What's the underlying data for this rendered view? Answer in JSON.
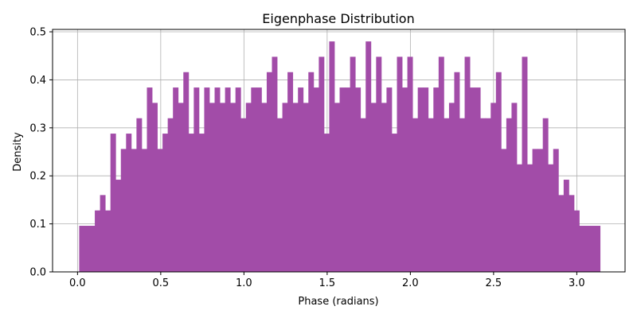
{
  "chart_data": {
    "type": "bar",
    "subtype": "histogram",
    "title": "Eigenphase Distribution",
    "xlabel": "Phase (radians)",
    "ylabel": "Density",
    "xlim": [
      -0.15,
      3.29
    ],
    "ylim": [
      0,
      0.505
    ],
    "xticks": [
      0.0,
      0.5,
      1.0,
      1.5,
      2.0,
      2.5,
      3.0
    ],
    "xtick_labels": [
      "0.0",
      "0.5",
      "1.0",
      "1.5",
      "2.0",
      "2.5",
      "3.0"
    ],
    "yticks": [
      0.0,
      0.1,
      0.2,
      0.3,
      0.4,
      0.5
    ],
    "ytick_labels": [
      "0.0",
      "0.1",
      "0.2",
      "0.3",
      "0.4",
      "0.5"
    ],
    "grid": true,
    "bar_color": "#a24ca8",
    "bin_range": [
      0.01,
      3.14
    ],
    "values": [
      0.096,
      0.096,
      0.096,
      0.128,
      0.16,
      0.128,
      0.288,
      0.192,
      0.256,
      0.288,
      0.256,
      0.32,
      0.256,
      0.384,
      0.352,
      0.256,
      0.288,
      0.32,
      0.384,
      0.352,
      0.416,
      0.288,
      0.384,
      0.288,
      0.384,
      0.352,
      0.384,
      0.352,
      0.384,
      0.352,
      0.384,
      0.32,
      0.352,
      0.384,
      0.384,
      0.352,
      0.416,
      0.448,
      0.32,
      0.352,
      0.416,
      0.352,
      0.384,
      0.352,
      0.416,
      0.384,
      0.448,
      0.288,
      0.48,
      0.352,
      0.384,
      0.384,
      0.448,
      0.384,
      0.32,
      0.48,
      0.352,
      0.448,
      0.352,
      0.384,
      0.288,
      0.448,
      0.384,
      0.448,
      0.32,
      0.384,
      0.384,
      0.32,
      0.384,
      0.448,
      0.32,
      0.352,
      0.416,
      0.32,
      0.448,
      0.384,
      0.384,
      0.32,
      0.32,
      0.352,
      0.416,
      0.256,
      0.32,
      0.352,
      0.224,
      0.448,
      0.224,
      0.256,
      0.256,
      0.32,
      0.224,
      0.256,
      0.16,
      0.192,
      0.16,
      0.128,
      0.096,
      0.096,
      0.096,
      0.096
    ]
  }
}
